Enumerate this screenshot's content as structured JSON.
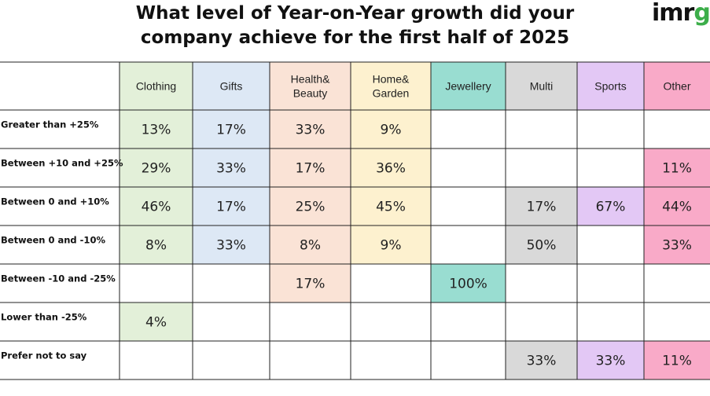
{
  "title_lines": [
    "What level of Year-on-Year growth did your",
    "company achieve for the first half of 2025"
  ],
  "logo": {
    "part1": "imr",
    "part2": "g"
  },
  "chart_data": {
    "type": "table",
    "title": "What level of Year-on-Year growth did your company achieve for the first half of 2025",
    "columns": [
      {
        "lines": [
          "Clothing"
        ],
        "color": "#e3f0d9"
      },
      {
        "lines": [
          "Gifts"
        ],
        "color": "#dde8f5"
      },
      {
        "lines": [
          "Health&",
          "Beauty"
        ],
        "color": "#fae3d6"
      },
      {
        "lines": [
          "Home&",
          "Garden"
        ],
        "color": "#fdf1cf"
      },
      {
        "lines": [
          "Jewellery"
        ],
        "color": "#99ddd1"
      },
      {
        "lines": [
          "Multi"
        ],
        "color": "#d9d9d9"
      },
      {
        "lines": [
          "Sports"
        ],
        "color": "#e3c8f5"
      },
      {
        "lines": [
          "Other"
        ],
        "color": "#f9aac8"
      }
    ],
    "rows": [
      {
        "label": "Greater than +25%",
        "values": [
          "13%",
          "17%",
          "33%",
          "9%",
          "",
          "",
          "",
          ""
        ]
      },
      {
        "label": "Between +10 and +25%",
        "values": [
          "29%",
          "33%",
          "17%",
          "36%",
          "",
          "",
          "",
          "11%"
        ]
      },
      {
        "label": "Between 0 and +10%",
        "values": [
          "46%",
          "17%",
          "25%",
          "45%",
          "",
          "17%",
          "67%",
          "44%"
        ]
      },
      {
        "label": "Between 0 and -10%",
        "values": [
          "8%",
          "33%",
          "8%",
          "9%",
          "",
          "50%",
          "",
          "33%"
        ]
      },
      {
        "label": "Between -10 and -25%",
        "values": [
          "",
          "",
          "17%",
          "",
          "100%",
          "",
          "",
          ""
        ]
      },
      {
        "label": "Lower than -25%",
        "values": [
          "4%",
          "",
          "",
          "",
          "",
          "",
          "",
          ""
        ]
      },
      {
        "label": "Prefer not to say",
        "values": [
          "",
          "",
          "",
          "",
          "",
          "33%",
          "33%",
          "11%"
        ]
      }
    ]
  }
}
